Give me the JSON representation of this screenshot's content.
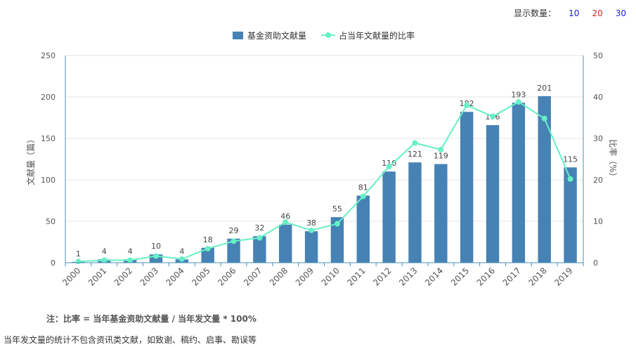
{
  "display_count": {
    "label": "显示数量：",
    "options": [
      {
        "value": "10",
        "color": "#1a1aff"
      },
      {
        "value": "20",
        "color": "#e02020"
      },
      {
        "value": "30",
        "color": "#1a1aff"
      }
    ]
  },
  "note": "注：比率 = 当年基金资助文献量 / 当年发文量 * 100%",
  "footnote": "当年发文量的统计不包含资讯类文献，如致谢、稿约、启事、勘误等",
  "chart_data": {
    "type": "bar",
    "categories": [
      "2000",
      "2001",
      "2002",
      "2003",
      "2004",
      "2005",
      "2006",
      "2007",
      "2008",
      "2009",
      "2010",
      "2011",
      "2012",
      "2013",
      "2014",
      "2015",
      "2016",
      "2017",
      "2018",
      "2019"
    ],
    "series": [
      {
        "name": "基金资助文献量",
        "type": "bar",
        "axis": "left",
        "color": "#4682b4",
        "values": [
          1,
          4,
          4,
          10,
          4,
          18,
          29,
          32,
          46,
          38,
          55,
          81,
          110,
          121,
          119,
          182,
          166,
          193,
          201,
          115
        ]
      },
      {
        "name": "占当年文献量的比率",
        "type": "line",
        "axis": "right",
        "color": "#66f0c6",
        "values": [
          0.3,
          0.6,
          0.6,
          1.6,
          0.9,
          3.4,
          5.2,
          6.0,
          9.8,
          7.8,
          9.4,
          16.0,
          23.2,
          28.9,
          27.3,
          38.0,
          35.3,
          38.8,
          34.8,
          20.2
        ]
      }
    ],
    "ylabel_left": "文献量（篇）",
    "ylabel_right": "比率（%）",
    "ylim_left": [
      0,
      250
    ],
    "yticks_left": [
      0,
      50,
      100,
      150,
      200,
      250
    ],
    "ylim_right": [
      0,
      50
    ],
    "yticks_right": [
      0,
      10,
      20,
      30,
      40,
      50
    ],
    "grid": true,
    "legend_position": "top-center"
  }
}
